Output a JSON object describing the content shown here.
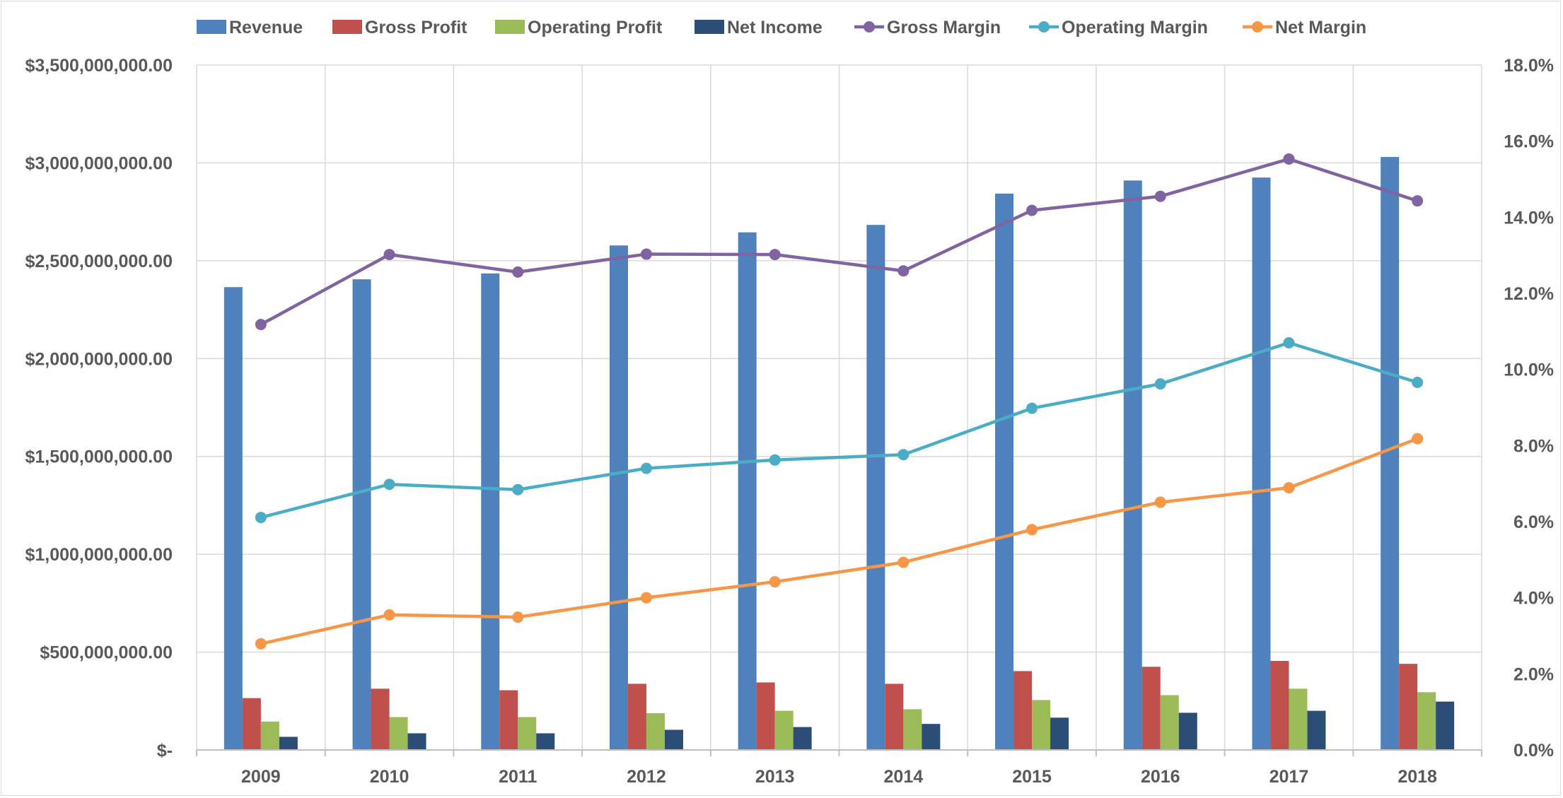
{
  "chart_data": {
    "type": "bar",
    "categories": [
      "2009",
      "2010",
      "2011",
      "2012",
      "2013",
      "2014",
      "2015",
      "2016",
      "2017",
      "2018"
    ],
    "series": [
      {
        "name": "Revenue",
        "type": "bar",
        "axis": "left",
        "color": "#4f81bd",
        "values": [
          2365000000,
          2405000000,
          2435000000,
          2578000000,
          2645000000,
          2683000000,
          2843000000,
          2910000000,
          2925000000,
          3030000000
        ]
      },
      {
        "name": "Gross Profit",
        "type": "bar",
        "axis": "left",
        "color": "#c0504d",
        "values": [
          265000000,
          313000000,
          305000000,
          338000000,
          345000000,
          338000000,
          403000000,
          425000000,
          455000000,
          440000000
        ]
      },
      {
        "name": "Operating Profit",
        "type": "bar",
        "axis": "left",
        "color": "#9bbb59",
        "values": [
          145000000,
          168000000,
          168000000,
          188000000,
          200000000,
          208000000,
          255000000,
          280000000,
          313000000,
          295000000
        ]
      },
      {
        "name": "Net Income",
        "type": "bar",
        "axis": "left",
        "color": "#2c4d75",
        "values": [
          67000000,
          85000000,
          85000000,
          103000000,
          117000000,
          133000000,
          165000000,
          190000000,
          200000000,
          247000000
        ]
      },
      {
        "name": "Gross Margin",
        "type": "line",
        "axis": "right",
        "color": "#8064a2",
        "values": [
          0.1118,
          0.1302,
          0.1256,
          0.1303,
          0.1302,
          0.1259,
          0.1418,
          0.1455,
          0.1553,
          0.1443
        ]
      },
      {
        "name": "Operating Margin",
        "type": "line",
        "axis": "right",
        "color": "#4bacc6",
        "values": [
          0.0611,
          0.0698,
          0.0684,
          0.074,
          0.0762,
          0.0776,
          0.0898,
          0.0962,
          0.107,
          0.0966
        ]
      },
      {
        "name": "Net Margin",
        "type": "line",
        "axis": "right",
        "color": "#f79646",
        "values": [
          0.0279,
          0.0355,
          0.0349,
          0.04,
          0.0442,
          0.0493,
          0.0579,
          0.0651,
          0.0689,
          0.0818
        ]
      }
    ],
    "y_left": {
      "min": 0,
      "max": 3500000000,
      "tick_labels": [
        "$-",
        "$500,000,000.00",
        "$1,000,000,000.00",
        "$1,500,000,000.00",
        "$2,000,000,000.00",
        "$2,500,000,000.00",
        "$3,000,000,000.00",
        "$3,500,000,000.00"
      ]
    },
    "y_right": {
      "min": 0,
      "max": 0.18,
      "tick_labels": [
        "0.0%",
        "2.0%",
        "4.0%",
        "6.0%",
        "8.0%",
        "10.0%",
        "12.0%",
        "14.0%",
        "16.0%",
        "18.0%"
      ]
    },
    "title": "",
    "xlabel": "",
    "ylabel": "",
    "grid": true,
    "legend_position": "top"
  }
}
